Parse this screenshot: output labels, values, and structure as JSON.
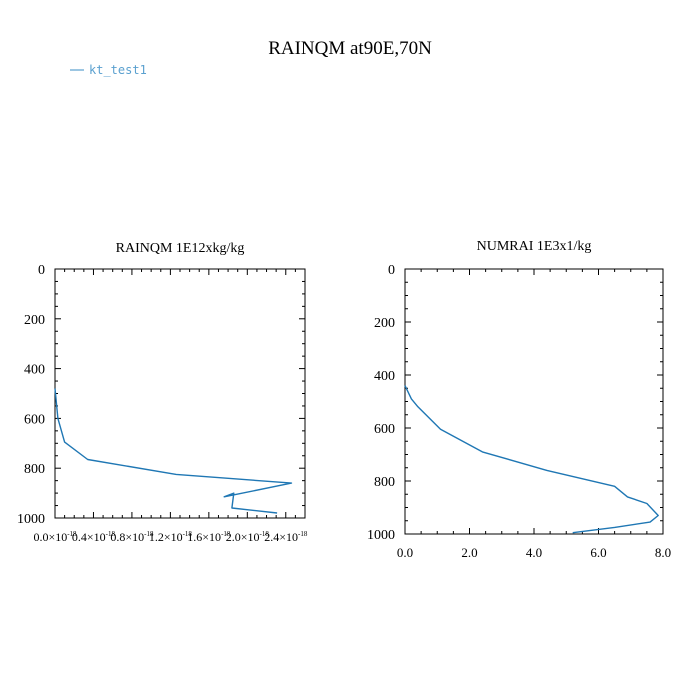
{
  "figure": {
    "title": "RAINQM at90E,70N",
    "legend": {
      "label": "kt_test1",
      "color": "#5aa0cf",
      "position": "top-left"
    }
  },
  "chart_data": [
    {
      "type": "line",
      "title": "RAINQM  1E12xkg/kg",
      "xlabel": "",
      "ylabel": "",
      "xlim": [
        0,
        2.6e-18
      ],
      "ylim": [
        1000,
        0
      ],
      "y_inverted": true,
      "xticks": [
        0,
        4e-19,
        8e-19,
        1.2e-18,
        1.6e-18,
        2e-18,
        2.4e-18
      ],
      "xtick_labels": [
        {
          "m": "0.0×10",
          "e": "-18"
        },
        {
          "m": "0.4×10",
          "e": "-18"
        },
        {
          "m": "0.8×10",
          "e": "-18"
        },
        {
          "m": "1.2×10",
          "e": "-18"
        },
        {
          "m": "1.6×10",
          "e": "-18"
        },
        {
          "m": "2.0×10",
          "e": "-18"
        },
        {
          "m": "2.4×10",
          "e": "-18"
        }
      ],
      "yticks": [
        0,
        200,
        400,
        600,
        800,
        1000
      ],
      "ytick_labels": [
        "0",
        "200",
        "400",
        "600",
        "800",
        "1000"
      ],
      "grid": false,
      "series": [
        {
          "color": "#1f77b4",
          "x": [
            0,
            3e-20,
            1e-19,
            3.4e-19,
            1.26e-18,
            2.46e-18,
            1.76e-18,
            1.86e-18,
            1.84e-18,
            2.31e-18
          ],
          "y": [
            480,
            600,
            695,
            765,
            825,
            860,
            915,
            900,
            960,
            980
          ]
        }
      ]
    },
    {
      "type": "line",
      "title": "NUMRAI  1E3x1/kg",
      "xlabel": "",
      "ylabel": "",
      "xlim": [
        0,
        8
      ],
      "ylim": [
        1000,
        0
      ],
      "y_inverted": true,
      "xticks": [
        0,
        2,
        4,
        6,
        8
      ],
      "xtick_labels": [
        "0.0",
        "2.0",
        "4.0",
        "6.0",
        "8.0"
      ],
      "yticks": [
        0,
        200,
        400,
        600,
        800,
        1000
      ],
      "ytick_labels": [
        "0",
        "200",
        "400",
        "600",
        "800",
        "1000"
      ],
      "grid": false,
      "series": [
        {
          "color": "#1f77b4",
          "x": [
            0,
            0.2,
            0.4,
            1.1,
            2.4,
            4.4,
            6.5,
            6.9,
            7.5,
            7.85,
            7.6,
            6.5,
            5.2
          ],
          "y": [
            440,
            490,
            520,
            605,
            690,
            760,
            820,
            860,
            885,
            930,
            955,
            975,
            995
          ]
        }
      ]
    }
  ]
}
